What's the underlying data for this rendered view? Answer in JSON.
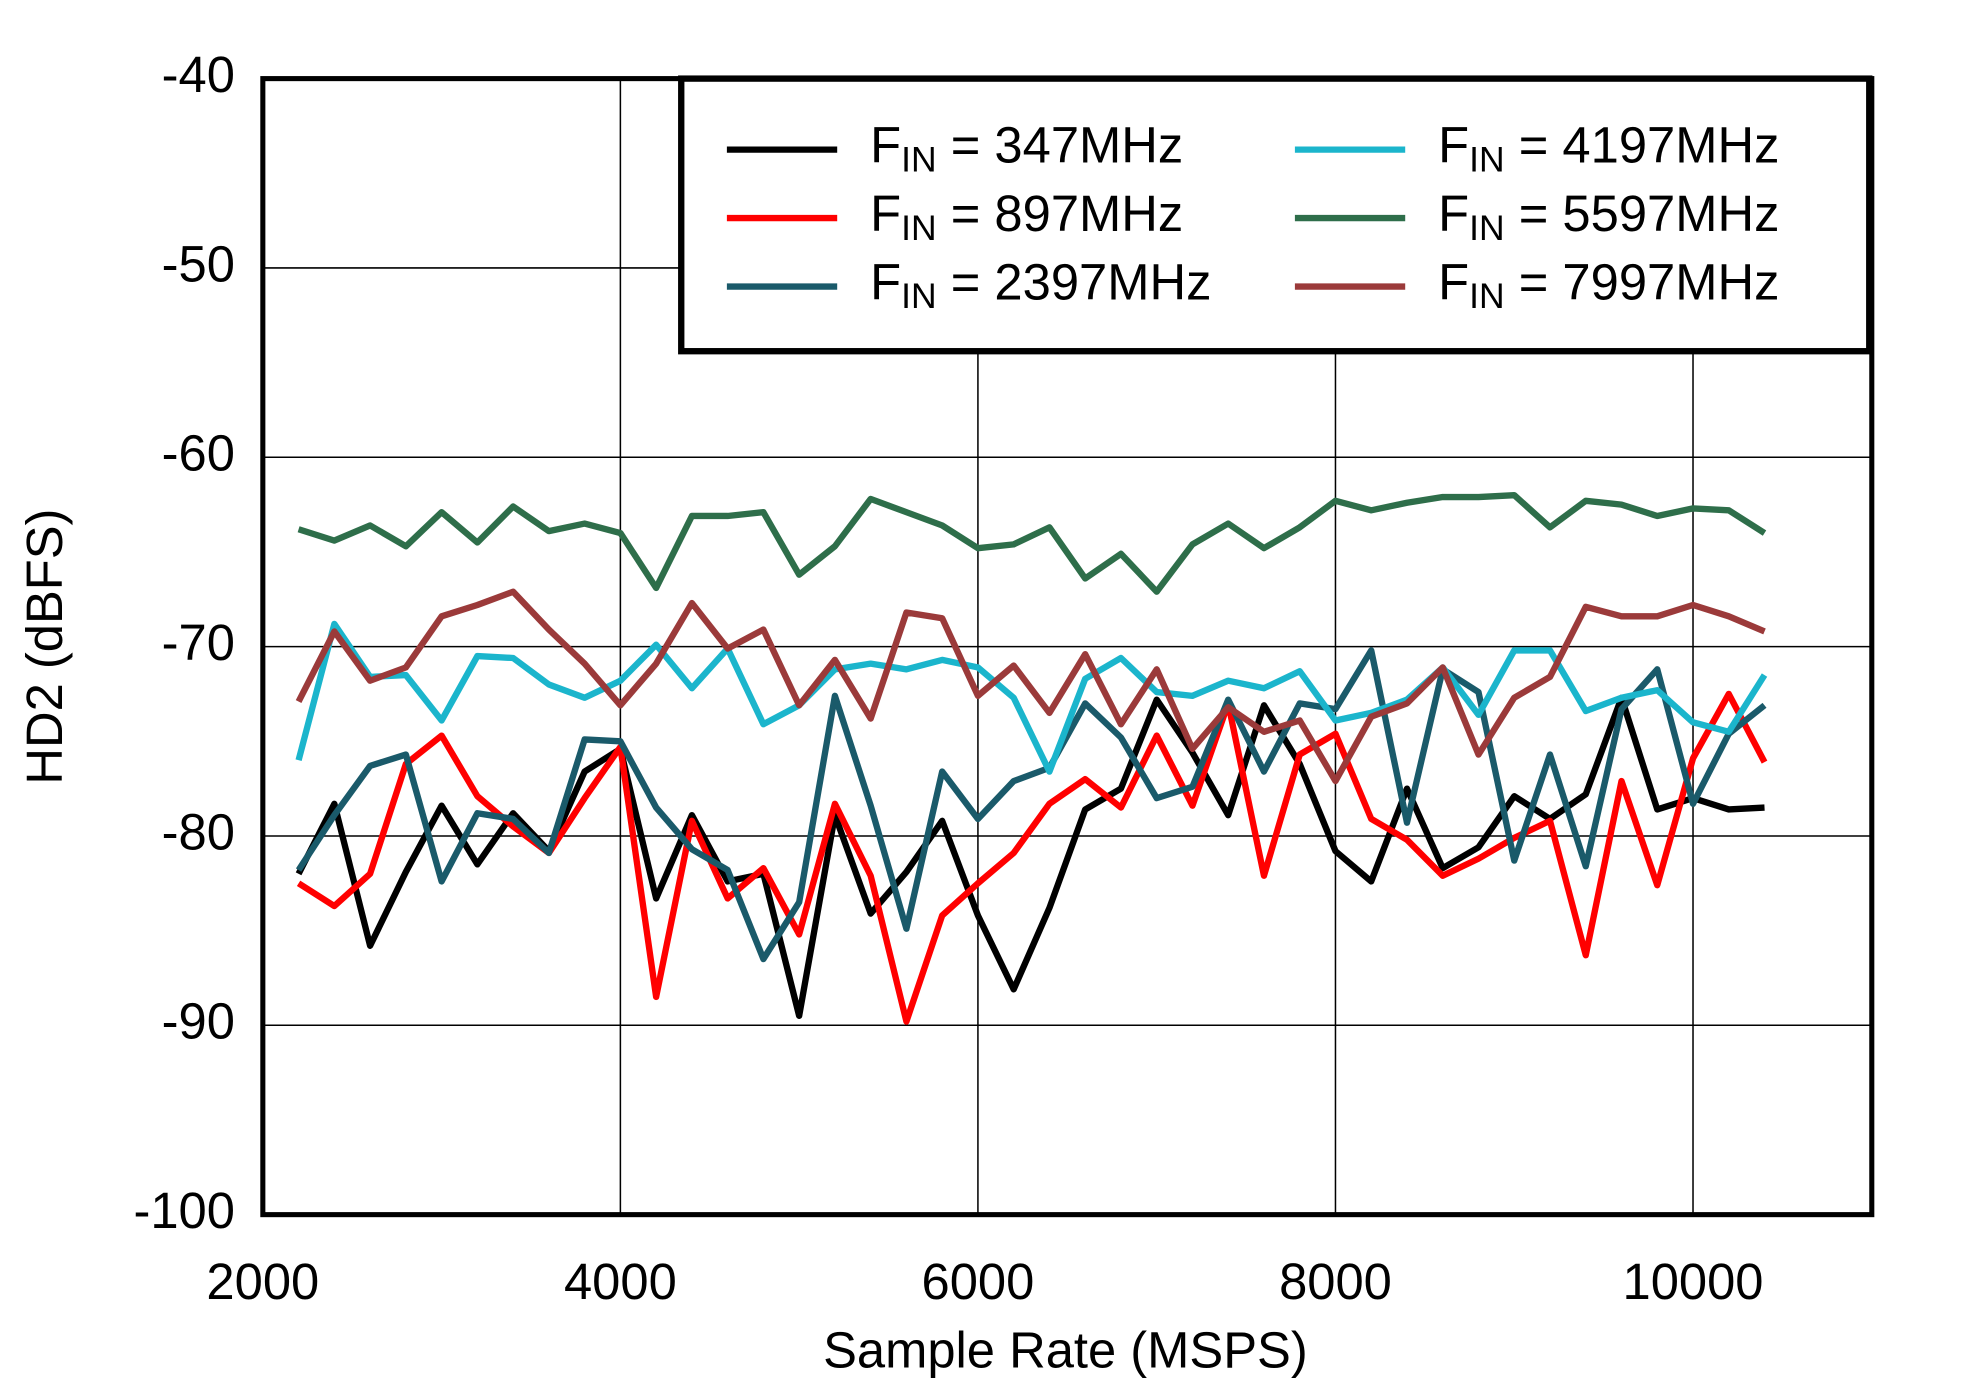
{
  "chart_data": {
    "type": "line",
    "x_label": "Sample Rate  (MSPS)",
    "y_label": "HD2  (dBFS)",
    "x": [
      2200,
      2400,
      2600,
      2800,
      3000,
      3200,
      3400,
      3600,
      3800,
      4000,
      4200,
      4400,
      4600,
      4800,
      5000,
      5200,
      5400,
      5600,
      5800,
      6000,
      6200,
      6400,
      6600,
      6800,
      7000,
      7200,
      7400,
      7600,
      7800,
      8000,
      8200,
      8400,
      8600,
      8800,
      9000,
      9200,
      9400,
      9600,
      9800,
      10000,
      10200,
      10400
    ],
    "xlim": [
      2000,
      11000
    ],
    "xticks": [
      2000,
      4000,
      6000,
      8000,
      10000
    ],
    "ylim": [
      -100,
      -40
    ],
    "yticks": [
      -100,
      -90,
      -80,
      -70,
      -60,
      -50,
      -40
    ],
    "grid": true,
    "legend": "upper right",
    "series": [
      {
        "name": "FIN = 347MHz",
        "color": "#000000",
        "values": [
          -82,
          -78.3,
          -85.8,
          -81.9,
          -78.4,
          -81.5,
          -78.8,
          -80.8,
          -76.6,
          -75.4,
          -83.3,
          -78.9,
          -82.4,
          -82,
          -89.5,
          -78.9,
          -84.1,
          -81.9,
          -79.2,
          -84.2,
          -88.1,
          -83.8,
          -78.6,
          -77.5,
          -72.8,
          -75.6,
          -78.9,
          -73.1,
          -76.2,
          -80.8,
          -82.4,
          -77.5,
          -81.7,
          -80.6,
          -77.9,
          -79.1,
          -77.8,
          -72.7,
          -78.6,
          -78,
          -78.6,
          -78.5
        ]
      },
      {
        "name": "FIN = 897MHz",
        "color": "#ff0000",
        "values": [
          -82.5,
          -83.7,
          -82,
          -76.2,
          -74.7,
          -77.9,
          -79.5,
          -80.9,
          -78,
          -75.3,
          -88.5,
          -79.2,
          -83.3,
          -81.7,
          -85.2,
          -78.3,
          -82.1,
          -89.8,
          -84.2,
          -82.5,
          -80.9,
          -78.3,
          -77,
          -78.5,
          -74.7,
          -78.4,
          -73,
          -82.1,
          -75.7,
          -74.6,
          -79.1,
          -80.2,
          -82.1,
          -81.2,
          -80.1,
          -79.2,
          -86.3,
          -77.1,
          -82.6,
          -75.9,
          -72.5,
          -76.1
        ]
      },
      {
        "name": "FIN = 2397MHz",
        "color": "#1a5a6a",
        "values": [
          -81.8,
          -78.9,
          -76.3,
          -75.7,
          -82.4,
          -78.8,
          -79.1,
          -80.9,
          -74.9,
          -75,
          -78.5,
          -80.7,
          -81.8,
          -86.5,
          -83.5,
          -72.6,
          -78.4,
          -84.9,
          -76.6,
          -79.1,
          -77.1,
          -76.4,
          -73,
          -74.8,
          -78,
          -77.4,
          -72.8,
          -76.6,
          -73,
          -73.3,
          -70.2,
          -79.3,
          -71.2,
          -72.4,
          -81.3,
          -75.7,
          -81.6,
          -73.3,
          -71.2,
          -78.3,
          -74.6,
          -73.1
        ]
      },
      {
        "name": "FIN = 4197MHz",
        "color": "#1bb5cc",
        "values": [
          -76,
          -68.8,
          -71.6,
          -71.5,
          -73.9,
          -70.5,
          -70.6,
          -72,
          -72.7,
          -71.8,
          -69.9,
          -72.2,
          -70.1,
          -74.1,
          -73.1,
          -71.2,
          -70.9,
          -71.2,
          -70.7,
          -71.1,
          -72.7,
          -76.6,
          -71.7,
          -70.6,
          -72.4,
          -72.6,
          -71.8,
          -72.2,
          -71.3,
          -73.9,
          -73.5,
          -72.8,
          -71.1,
          -73.6,
          -70.2,
          -70.2,
          -73.4,
          -72.7,
          -72.3,
          -74,
          -74.5,
          -71.5
        ]
      },
      {
        "name": "FIN = 5597MHz",
        "color": "#2e6e4a",
        "values": [
          -63.8,
          -64.4,
          -63.6,
          -64.7,
          -62.9,
          -64.5,
          -62.6,
          -63.9,
          -63.5,
          -64,
          -66.9,
          -63.1,
          -63.1,
          -62.9,
          -66.2,
          -64.7,
          -62.2,
          -62.9,
          -63.6,
          -64.8,
          -64.6,
          -63.7,
          -66.4,
          -65.1,
          -67.1,
          -64.6,
          -63.5,
          -64.8,
          -63.7,
          -62.3,
          -62.8,
          -62.4,
          -62.1,
          -62.1,
          -62,
          -63.7,
          -62.3,
          -62.5,
          -63.1,
          -62.7,
          -62.8,
          -64
        ]
      },
      {
        "name": "FIN = 7997MHz",
        "color": "#9b3a3a",
        "values": [
          -72.9,
          -69.2,
          -71.8,
          -71.1,
          -68.4,
          -67.8,
          -67.1,
          -69.1,
          -70.9,
          -73.1,
          -70.9,
          -67.7,
          -70.1,
          -69.1,
          -73.1,
          -70.7,
          -73.8,
          -68.2,
          -68.5,
          -72.6,
          -71,
          -73.5,
          -70.4,
          -74.1,
          -71.2,
          -75.4,
          -73.2,
          -74.5,
          -73.9,
          -77.1,
          -73.7,
          -73,
          -71.1,
          -75.7,
          -72.7,
          -71.6,
          -67.9,
          -68.4,
          -68.4,
          -67.8,
          -68.4,
          -69.2
        ]
      }
    ]
  }
}
